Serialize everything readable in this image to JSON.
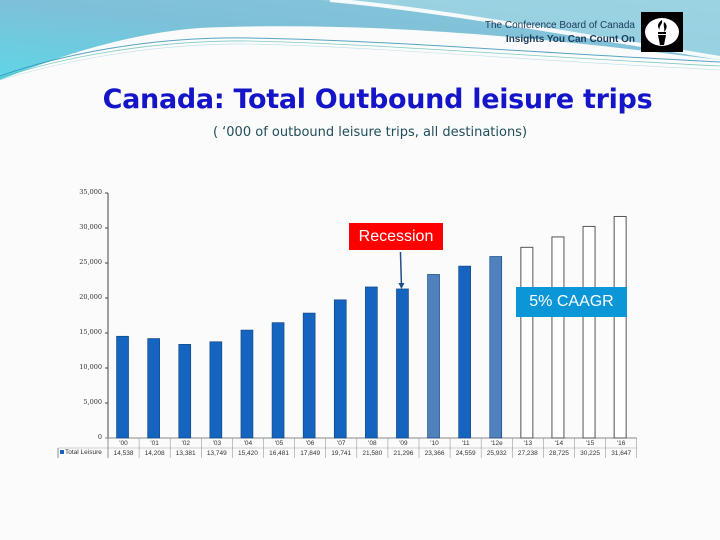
{
  "header": {
    "org_name": "The Conference Board of Canada",
    "tagline": "Insights You Can Count On",
    "logo_icon": "torch-icon"
  },
  "slide": {
    "title": "Canada: Total Outbound leisure trips",
    "subtitle": "( ‘000 of outbound leisure trips, all destinations)"
  },
  "annotations": {
    "recession": "Recession",
    "caagr": "5% CAAGR"
  },
  "colors": {
    "title": "#1414c8",
    "bar_actual": "#1565c0",
    "bar_estimate": "#4f81bd",
    "bar_forecast": "#ffffff",
    "recession_box": "#ff0000",
    "caagr_box": "#0b96d8"
  },
  "chart_data": {
    "type": "bar",
    "title": "Canada: Total Outbound leisure trips",
    "subtitle": "('000 of outbound leisure trips, all destinations)",
    "xlabel": "",
    "ylabel": "",
    "ylim": [
      0,
      35000
    ],
    "yticks": [
      "0",
      "5,000",
      "10,000",
      "15,000",
      "20,000",
      "25,000",
      "30,000",
      "35,000"
    ],
    "categories": [
      "'00",
      "'01",
      "'02",
      "'03",
      "'04",
      "'05",
      "'06",
      "'07",
      "'08",
      "'09",
      "'10",
      "'11",
      "'12e",
      "'13",
      "'14",
      "'15",
      "'16"
    ],
    "series": [
      {
        "name": "Total Leisure",
        "values": [
          14538,
          14208,
          13381,
          13749,
          15420,
          16481,
          17849,
          19741,
          21580,
          21296,
          23366,
          24559,
          25932,
          27238,
          28725,
          30225,
          31647
        ],
        "value_labels": [
          "14,538",
          "14,208",
          "13,381",
          "13,749",
          "15,420",
          "16,481",
          "17,849",
          "19,741",
          "21,580",
          "21,296",
          "23,366",
          "24,559",
          "25,932",
          "27,238",
          "28,725",
          "30,225",
          "31,647"
        ],
        "styles": [
          "actual",
          "actual",
          "actual",
          "actual",
          "actual",
          "actual",
          "actual",
          "actual",
          "actual",
          "actual",
          "estimate",
          "actual",
          "estimate",
          "forecast",
          "forecast",
          "forecast",
          "forecast"
        ]
      }
    ],
    "annotations": [
      {
        "text": "Recession",
        "points_to": "'09"
      },
      {
        "text": "5% CAAGR",
        "region": "'13-'16"
      }
    ],
    "legend": {
      "position": "data-table-left",
      "entries": [
        "Total Leisure"
      ]
    },
    "grid": false
  }
}
